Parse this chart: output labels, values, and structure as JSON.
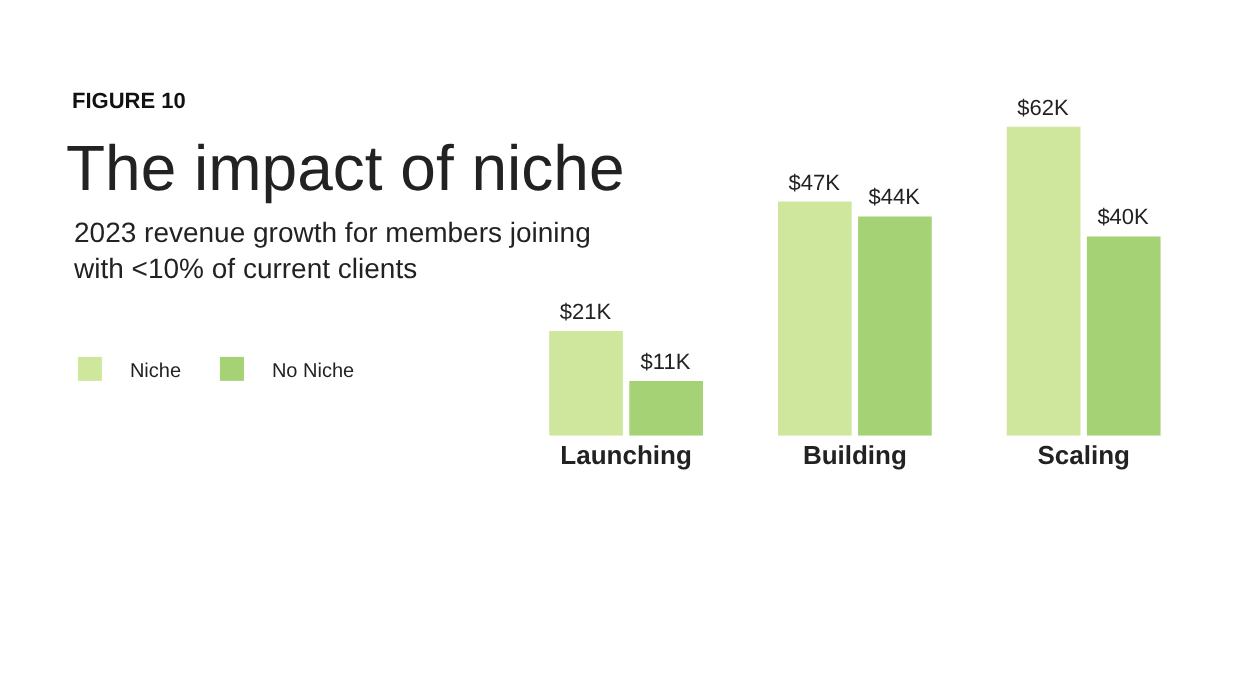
{
  "chart_data": {
    "type": "bar",
    "title": "The impact of niche",
    "subtitle": "2023 revenue growth for members joining\nwith <10% of current clients",
    "annotations": [
      "FIGURE 10"
    ],
    "categories": [
      "Launching",
      "Building",
      "Scaling"
    ],
    "series": [
      {
        "name": "Niche",
        "color": "#cfe79d",
        "values": [
          21,
          47,
          62
        ],
        "value_labels": [
          "$21K",
          "$47K",
          "$62K"
        ]
      },
      {
        "name": "No Niche",
        "color": "#a5d274",
        "values": [
          11,
          44,
          40
        ],
        "value_labels": [
          "$11K",
          "$44K",
          "$40K"
        ]
      }
    ],
    "legend": "left"
  }
}
